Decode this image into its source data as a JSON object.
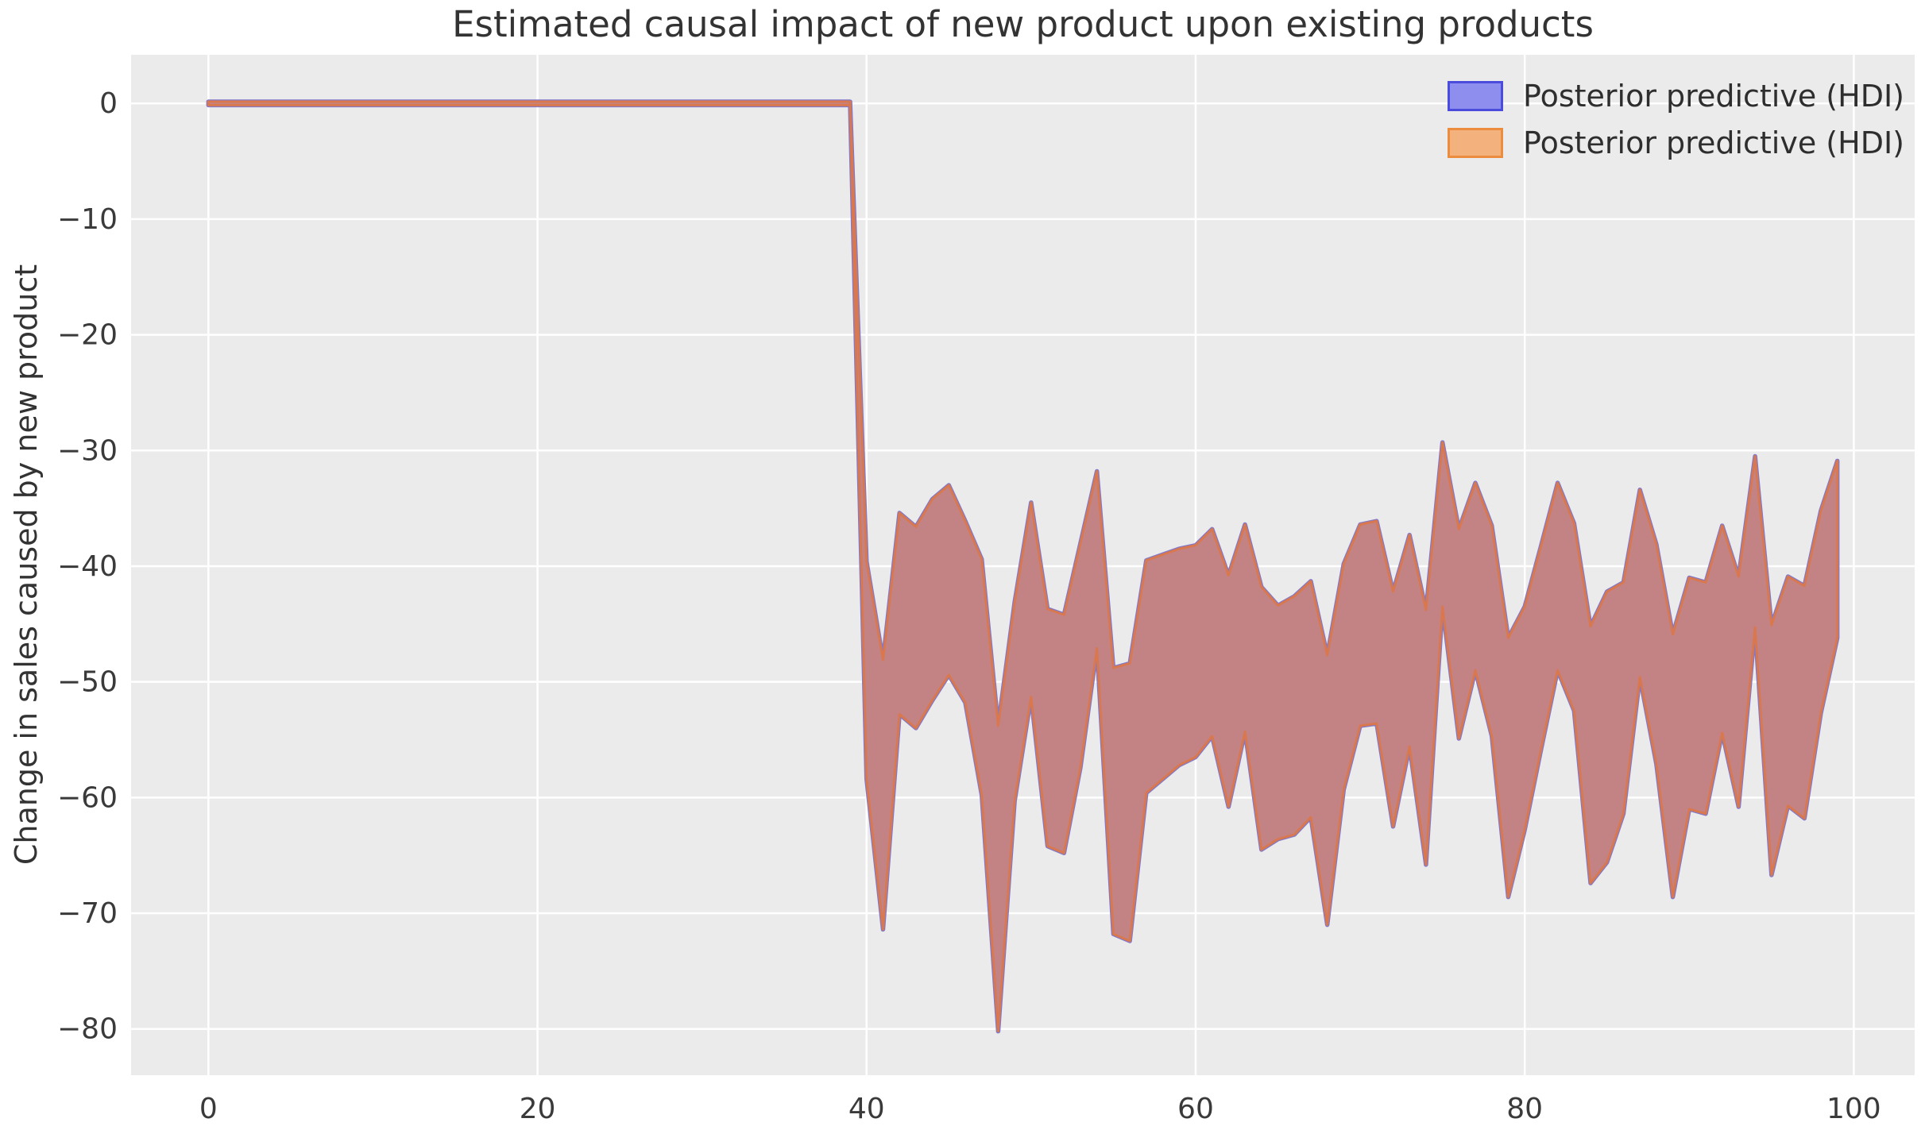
{
  "chart_data": {
    "type": "area",
    "title": "Estimated causal impact of new product upon existing products",
    "xlabel": "",
    "ylabel": "Change in sales caused by new product",
    "legend_position": "upper right",
    "grid": true,
    "series": [
      {
        "name": "Posterior predictive (HDI)",
        "color": "#8e8eef",
        "edge": "#4b4bdc"
      },
      {
        "name": "Posterior predictive (HDI)",
        "color": "#f2b17d",
        "edge": "#ec8c3e"
      }
    ],
    "x_range": [
      0,
      99
    ],
    "x_step": 1,
    "xticks": [
      0,
      20,
      40,
      60,
      80,
      100
    ],
    "yticks": [
      0,
      -10,
      -20,
      -30,
      -40,
      -50,
      -60,
      -70,
      -80
    ],
    "xlim": [
      -4.7,
      103.7
    ],
    "ylim": [
      -84.0,
      4.2
    ],
    "band": {
      "upper": [
        0.15,
        0.15,
        0.15,
        0.15,
        0.15,
        0.15,
        0.15,
        0.15,
        0.15,
        0.15,
        0.15,
        0.15,
        0.15,
        0.15,
        0.15,
        0.15,
        0.15,
        0.15,
        0.15,
        0.15,
        0.15,
        0.15,
        0.15,
        0.15,
        0.15,
        0.15,
        0.15,
        0.15,
        0.15,
        0.15,
        0.15,
        0.15,
        0.15,
        0.15,
        0.15,
        0.15,
        0.15,
        0.15,
        0.15,
        0.15,
        -39.6,
        -48.1,
        -35.4,
        -36.6,
        -34.2,
        -33.0,
        -36.1,
        -39.4,
        -53.8,
        -43.1,
        -34.5,
        -43.7,
        -44.2,
        -38.0,
        -31.8,
        -48.8,
        -48.4,
        -39.5,
        -39.0,
        -38.5,
        -38.2,
        -36.8,
        -40.8,
        -36.4,
        -41.8,
        -43.4,
        -42.6,
        -41.3,
        -47.7,
        -39.8,
        -36.4,
        -36.1,
        -42.2,
        -37.3,
        -43.8,
        -29.3,
        -36.8,
        -32.8,
        -36.5,
        -46.2,
        -43.5,
        -38.2,
        -32.8,
        -36.3,
        -45.2,
        -42.2,
        -41.4,
        -33.4,
        -38.1,
        -45.9,
        -41.0,
        -41.4,
        -36.5,
        -40.9,
        -30.5,
        -45.1,
        -40.9,
        -41.7,
        -35.2,
        -30.9
      ],
      "lower": [
        -0.15,
        -0.15,
        -0.15,
        -0.15,
        -0.15,
        -0.15,
        -0.15,
        -0.15,
        -0.15,
        -0.15,
        -0.15,
        -0.15,
        -0.15,
        -0.15,
        -0.15,
        -0.15,
        -0.15,
        -0.15,
        -0.15,
        -0.15,
        -0.15,
        -0.15,
        -0.15,
        -0.15,
        -0.15,
        -0.15,
        -0.15,
        -0.15,
        -0.15,
        -0.15,
        -0.15,
        -0.15,
        -0.15,
        -0.15,
        -0.15,
        -0.15,
        -0.15,
        -0.15,
        -0.15,
        -0.15,
        -58.4,
        -71.4,
        -52.8,
        -54.0,
        -51.6,
        -49.4,
        -51.8,
        -59.8,
        -80.2,
        -60.3,
        -51.3,
        -64.2,
        -64.8,
        -57.4,
        -47.1,
        -71.8,
        -72.4,
        -59.6,
        -58.4,
        -57.2,
        -56.5,
        -54.7,
        -60.8,
        -54.3,
        -64.5,
        -63.6,
        -63.2,
        -61.7,
        -71.0,
        -59.3,
        -53.8,
        -53.6,
        -62.5,
        -55.6,
        -65.8,
        -43.5,
        -54.9,
        -49.0,
        -54.7,
        -68.6,
        -62.8,
        -55.8,
        -49.0,
        -52.5,
        -67.4,
        -65.6,
        -61.4,
        -49.6,
        -57.1,
        -68.6,
        -61.0,
        -61.4,
        -54.4,
        -60.8,
        -45.3,
        -66.7,
        -60.7,
        -61.8,
        -52.7,
        -46.2
      ]
    },
    "colors": {
      "fig_bg": "#ffffff",
      "plot_bg": "#ebebeb",
      "grid": "#ffffff",
      "band_fill": "#c38384",
      "band_edge_orange": "#d9784f",
      "band_edge_blue": "#8278c8",
      "text": "#3a3a3a"
    }
  }
}
